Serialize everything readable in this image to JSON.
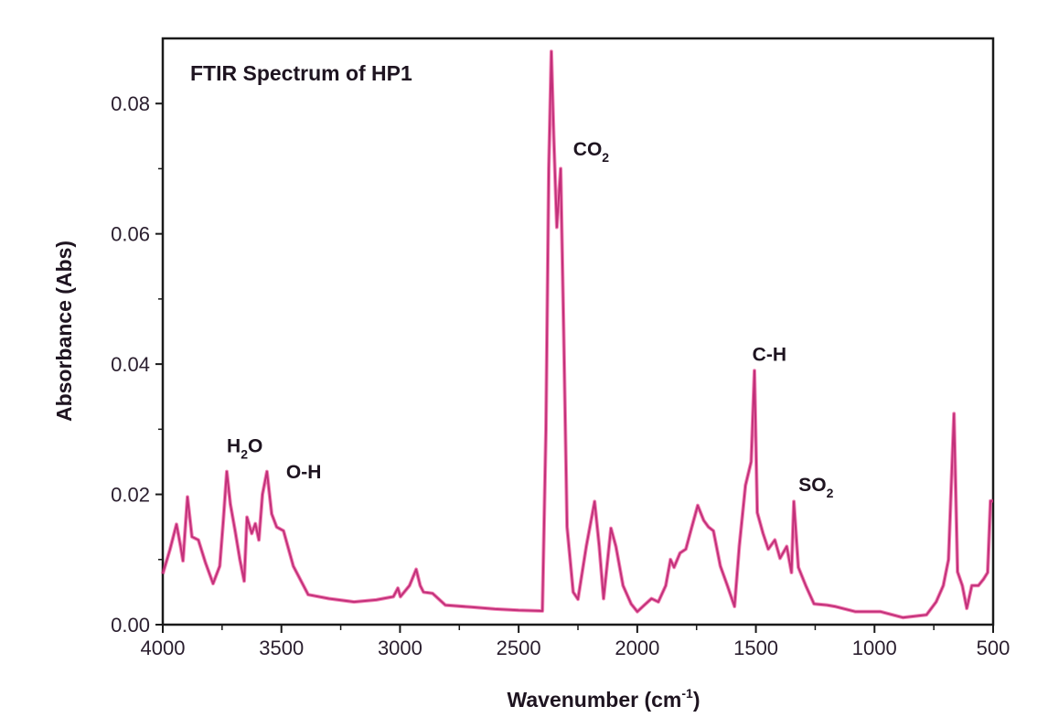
{
  "chart_data": {
    "type": "line",
    "title": "FTIR Spectrum of HP1",
    "xlabel": "Wavenumber (cm",
    "xlabel_sup": "-1",
    "xlabel_end": ")",
    "ylabel": "Absorbance (Abs)",
    "xlim": [
      4000,
      500
    ],
    "ylim": [
      0,
      0.09
    ],
    "x_reversed": true,
    "grid": false,
    "x_ticks": [
      4000,
      3500,
      3000,
      2500,
      2000,
      1500,
      1000,
      500
    ],
    "x_tick_labels": [
      "4000",
      "3500",
      "3000",
      "2500",
      "2000",
      "1500",
      "1000",
      "500"
    ],
    "y_ticks": [
      0,
      0.02,
      0.04,
      0.06,
      0.08
    ],
    "y_tick_labels": [
      "0.00",
      "0.02",
      "0.04",
      "0.06",
      "0.08"
    ],
    "line_color": "#d81f6e",
    "annotations": [
      {
        "text": "H",
        "sub": "2",
        "after": "O",
        "x": 3730,
        "y": 0.0265
      },
      {
        "text": "O-H",
        "sub": "",
        "after": "",
        "x": 3480,
        "y": 0.0225
      },
      {
        "text": "CO",
        "sub": "2",
        "after": "",
        "x": 2270,
        "y": 0.072
      },
      {
        "text": "C-H",
        "sub": "",
        "after": "",
        "x": 1515,
        "y": 0.0405
      },
      {
        "text": "SO",
        "sub": "2",
        "after": "",
        "x": 1320,
        "y": 0.0205
      }
    ],
    "series": [
      {
        "name": "HP1",
        "x": [
          4000,
          3970,
          3942,
          3925,
          3915,
          3896,
          3877,
          3850,
          3820,
          3788,
          3760,
          3745,
          3730,
          3715,
          3695,
          3675,
          3657,
          3645,
          3625,
          3610,
          3595,
          3580,
          3561,
          3541,
          3520,
          3491,
          3450,
          3387,
          3300,
          3194,
          3100,
          3028,
          3009,
          2998,
          2960,
          2932,
          2915,
          2901,
          2863,
          2809,
          2700,
          2600,
          2500,
          2400,
          2385,
          2373,
          2362,
          2352,
          2339,
          2323,
          2310,
          2296,
          2270,
          2250,
          2215,
          2180,
          2160,
          2142,
          2111,
          2090,
          2060,
          2026,
          2000,
          1970,
          1940,
          1911,
          1880,
          1860,
          1845,
          1820,
          1795,
          1770,
          1745,
          1720,
          1700,
          1679,
          1650,
          1620,
          1590,
          1570,
          1544,
          1520,
          1506,
          1494,
          1470,
          1448,
          1420,
          1398,
          1370,
          1350,
          1340,
          1321,
          1290,
          1255,
          1200,
          1167,
          1080,
          974,
          881,
          781,
          740,
          710,
          688,
          665,
          650,
          630,
          611,
          590,
          562,
          540,
          523,
          511,
          500
        ],
        "y": [
          0.0078,
          0.0115,
          0.0154,
          0.012,
          0.0098,
          0.0196,
          0.0135,
          0.013,
          0.0095,
          0.0063,
          0.009,
          0.016,
          0.0235,
          0.0185,
          0.0144,
          0.01,
          0.0067,
          0.0165,
          0.014,
          0.0155,
          0.013,
          0.02,
          0.0235,
          0.017,
          0.015,
          0.0144,
          0.009,
          0.0046,
          0.004,
          0.0035,
          0.0038,
          0.0043,
          0.0056,
          0.0043,
          0.006,
          0.0085,
          0.006,
          0.005,
          0.0048,
          0.003,
          0.0027,
          0.0024,
          0.0022,
          0.0021,
          0.03,
          0.07,
          0.088,
          0.075,
          0.061,
          0.07,
          0.045,
          0.015,
          0.005,
          0.0039,
          0.012,
          0.0189,
          0.012,
          0.004,
          0.0148,
          0.012,
          0.006,
          0.0032,
          0.002,
          0.003,
          0.004,
          0.0035,
          0.006,
          0.01,
          0.0088,
          0.011,
          0.0116,
          0.015,
          0.0183,
          0.016,
          0.015,
          0.0144,
          0.009,
          0.006,
          0.0028,
          0.012,
          0.0214,
          0.025,
          0.039,
          0.0172,
          0.014,
          0.0116,
          0.013,
          0.0102,
          0.012,
          0.008,
          0.0189,
          0.0088,
          0.006,
          0.0032,
          0.003,
          0.0028,
          0.002,
          0.002,
          0.0011,
          0.0015,
          0.0035,
          0.006,
          0.01,
          0.0324,
          0.0081,
          0.006,
          0.0025,
          0.006,
          0.006,
          0.007,
          0.008,
          0.019,
          0.019
        ]
      }
    ]
  }
}
